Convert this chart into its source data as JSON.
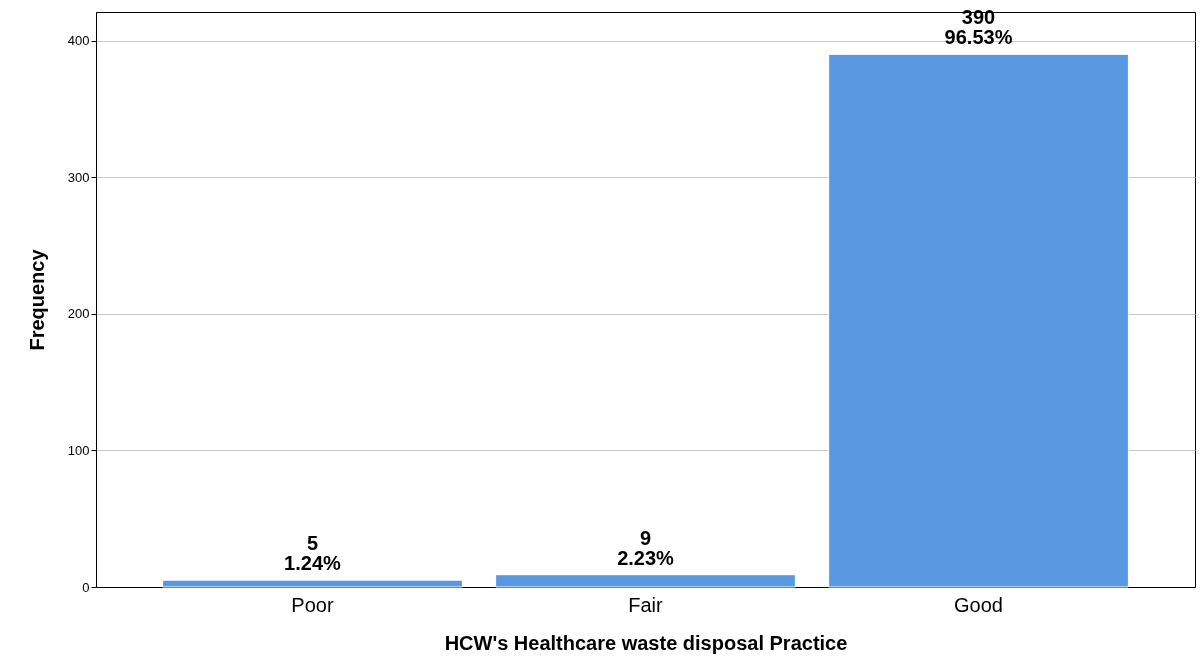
{
  "chart_data": {
    "type": "bar",
    "xlabel": "HCW's Healthcare waste disposal Practice",
    "ylabel": "Frequency",
    "categories": [
      "Poor",
      "Fair",
      "Good"
    ],
    "values": [
      5,
      9,
      390
    ],
    "value_labels": [
      "5\n1.24%",
      "9\n2.23%",
      "390\n96.53%"
    ],
    "color": "#5899e2",
    "ylim": [
      0,
      421
    ],
    "yticks": [
      0,
      100,
      200,
      300,
      400
    ],
    "grid": "y"
  }
}
